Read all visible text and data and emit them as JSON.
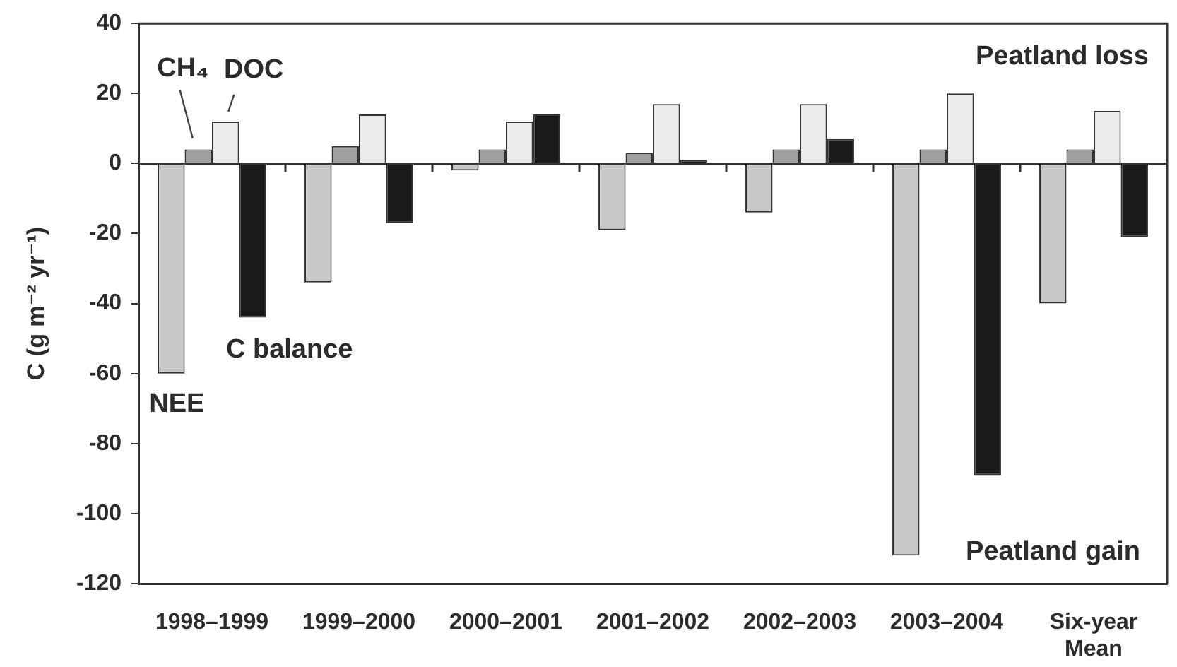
{
  "chart_data": {
    "type": "bar",
    "ylabel": "C (g m⁻² yr⁻¹)",
    "categories": [
      "1998–1999",
      "1999–2000",
      "2000–2001",
      "2001–2002",
      "2002–2003",
      "2003–2004",
      "Six-year Mean"
    ],
    "series": [
      {
        "name": "NEE",
        "color": "#c8c8c8",
        "values": [
          -60,
          -34,
          -2,
          -19,
          -14,
          -112,
          -40
        ]
      },
      {
        "name": "CH₄",
        "color": "#a0a0a0",
        "values": [
          4,
          5,
          4,
          3,
          4,
          4,
          4
        ]
      },
      {
        "name": "DOC",
        "color": "#ececec",
        "values": [
          12,
          14,
          12,
          17,
          17,
          20,
          15
        ]
      },
      {
        "name": "C balance",
        "color": "#1a1a1a",
        "values": [
          -44,
          -17,
          14,
          1,
          7,
          -89,
          -21
        ]
      }
    ],
    "ylim": [
      -120,
      40
    ],
    "yticks": [
      -120,
      -100,
      -80,
      -60,
      -40,
      -20,
      0,
      20,
      40
    ],
    "legend": false,
    "annotations": [
      "Peatland loss",
      "Peatland gain"
    ]
  }
}
